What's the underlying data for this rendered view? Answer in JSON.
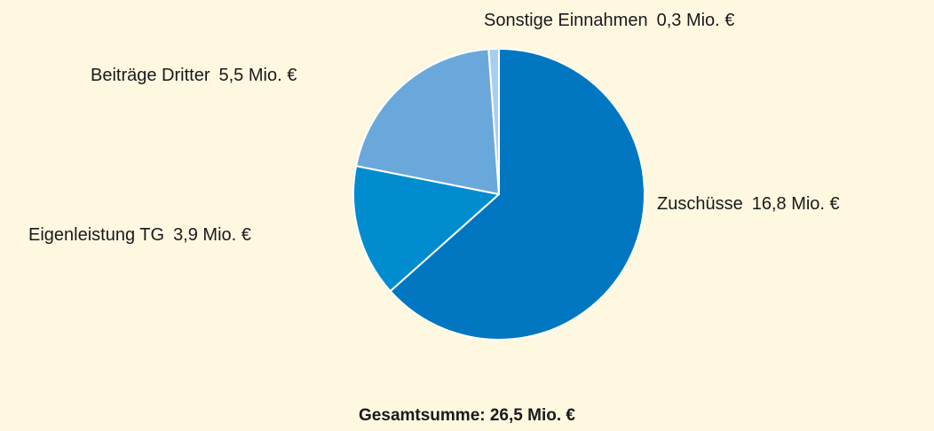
{
  "chart_data": {
    "type": "pie",
    "categories": [
      "Zuschüsse",
      "Eigenleistung TG",
      "Beiträge Dritter",
      "Sonstige Einnahmen"
    ],
    "values": [
      16.8,
      3.9,
      5.5,
      0.3
    ],
    "value_labels": [
      "16,8 Mio. €",
      "3,9 Mio. €",
      "5,5 Mio. €",
      "0,3 Mio. €"
    ],
    "colors": [
      "#0077c0",
      "#008ccf",
      "#6aa8dc",
      "#a9cdee"
    ],
    "annotation": "Gesamtsumme: 26,5 Mio. €"
  }
}
